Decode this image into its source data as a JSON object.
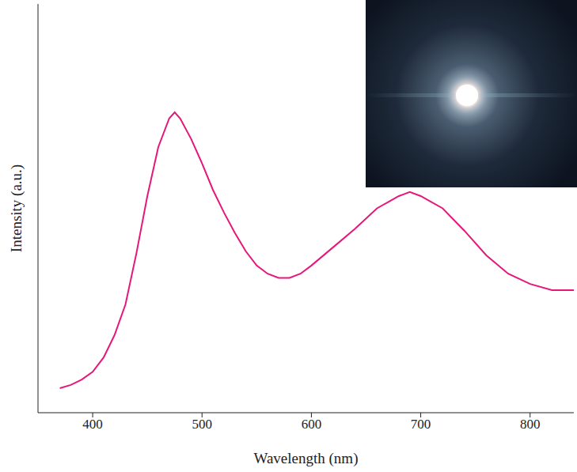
{
  "chart_data": {
    "type": "line",
    "x_label": "Wavelength (nm)",
    "y_label": "Intensity (a.u.)",
    "x": [
      370,
      380,
      390,
      400,
      410,
      420,
      430,
      440,
      450,
      460,
      470,
      475,
      480,
      490,
      500,
      510,
      520,
      530,
      540,
      550,
      560,
      570,
      580,
      590,
      600,
      620,
      640,
      660,
      680,
      690,
      700,
      720,
      740,
      760,
      780,
      800,
      820,
      840
    ],
    "values": [
      0.06,
      0.068,
      0.081,
      0.1,
      0.135,
      0.19,
      0.265,
      0.39,
      0.53,
      0.65,
      0.72,
      0.735,
      0.72,
      0.67,
      0.61,
      0.545,
      0.49,
      0.44,
      0.395,
      0.36,
      0.34,
      0.33,
      0.33,
      0.34,
      0.36,
      0.405,
      0.45,
      0.5,
      0.53,
      0.54,
      0.53,
      0.5,
      0.445,
      0.385,
      0.34,
      0.315,
      0.3,
      0.3
    ],
    "color": "#e6177a",
    "xlim": [
      350,
      840
    ],
    "xticks": [
      400,
      500,
      600,
      700,
      800
    ],
    "ylim": [
      0,
      1
    ],
    "tick_labels": "x",
    "grid": false
  }
}
